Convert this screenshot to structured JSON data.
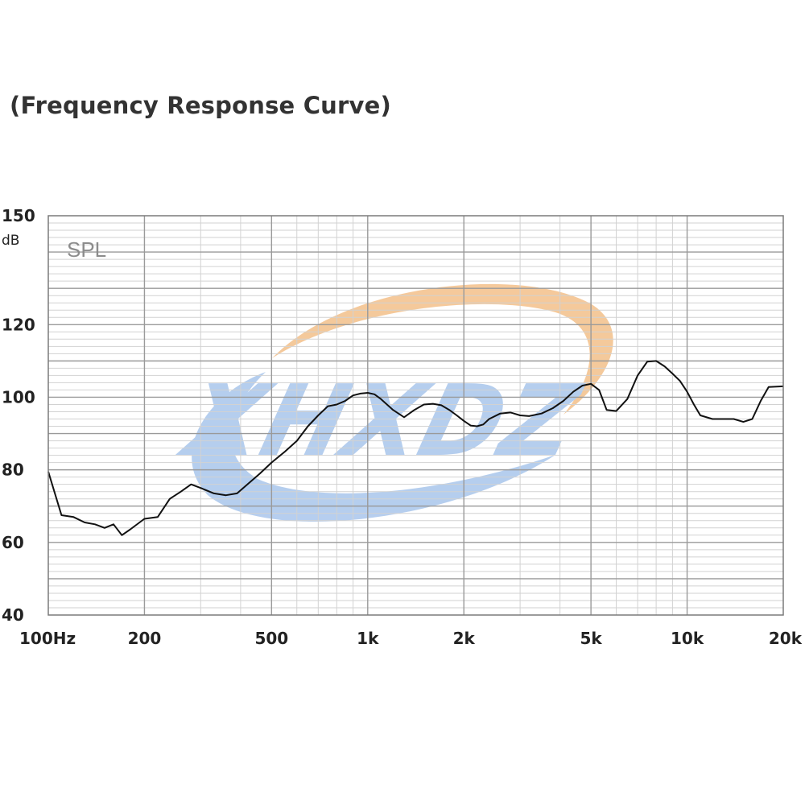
{
  "title": "(Frequency Response Curve)",
  "watermark": {
    "text": "XHXDZ",
    "fill_color": "#a9c6ec",
    "swoosh_color": "#f3c08a"
  },
  "chart_data": {
    "type": "line",
    "title": "(Frequency Response Curve)",
    "plot_label": "SPL",
    "xlabel": "",
    "ylabel": "dB",
    "x_scale": "log",
    "xlim": [
      100,
      20000
    ],
    "ylim": [
      40,
      150
    ],
    "y_ticks": [
      150,
      120,
      100,
      80,
      60,
      40
    ],
    "x_ticks": [
      {
        "value": 100,
        "label": "100Hz"
      },
      {
        "value": 200,
        "label": "200"
      },
      {
        "value": 500,
        "label": "500"
      },
      {
        "value": 1000,
        "label": "1k"
      },
      {
        "value": 2000,
        "label": "2k"
      },
      {
        "value": 5000,
        "label": "5k"
      },
      {
        "value": 10000,
        "label": "10k"
      },
      {
        "value": 20000,
        "label": "20k"
      }
    ],
    "grid": true,
    "line_color": "#111111",
    "series": [
      {
        "x": [
          100,
          110,
          120,
          130,
          140,
          150,
          160,
          170,
          180,
          200,
          220,
          240,
          260,
          280,
          300,
          330,
          360,
          390,
          420,
          460,
          500,
          550,
          600,
          650,
          700,
          750,
          800,
          850,
          900,
          950,
          1000,
          1050,
          1100,
          1200,
          1300,
          1400,
          1500,
          1600,
          1700,
          1800,
          1900,
          2000,
          2100,
          2200,
          2300,
          2400,
          2600,
          2800,
          3000,
          3200,
          3500,
          3800,
          4100,
          4400,
          4700,
          5000,
          5300,
          5600,
          6000,
          6500,
          7000,
          7500,
          8000,
          8500,
          9000,
          9500,
          10000,
          10500,
          11000,
          12000,
          13000,
          14000,
          15000,
          16000,
          17000,
          18000,
          20000
        ],
        "values": [
          79.5,
          67.5,
          67,
          65.5,
          65,
          64,
          65,
          62,
          63.5,
          66.5,
          67,
          72,
          74,
          76,
          75,
          73.5,
          73,
          73.5,
          76,
          79,
          82,
          85,
          88,
          92,
          95,
          97.5,
          98,
          99,
          100.5,
          101,
          101.2,
          100.8,
          99.5,
          96.5,
          94.5,
          96.5,
          98,
          98.2,
          97.8,
          96.5,
          95,
          93.5,
          92.2,
          92,
          92.5,
          94,
          95.5,
          95.8,
          95,
          94.8,
          95.5,
          97,
          99,
          101.5,
          103.2,
          103.7,
          102,
          96.5,
          96.2,
          99.5,
          106,
          109.8,
          110,
          108.5,
          106.5,
          104.5,
          101.5,
          98,
          95,
          94,
          94,
          94,
          93.2,
          94,
          99,
          102.8,
          103
        ]
      }
    ]
  }
}
